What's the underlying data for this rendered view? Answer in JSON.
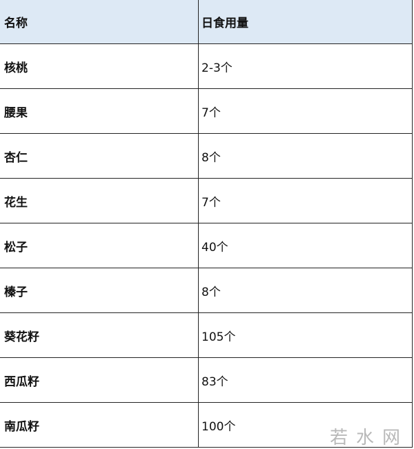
{
  "table": {
    "headers": [
      "名称",
      "日食用量"
    ],
    "rows": [
      [
        "核桃",
        "2-3个"
      ],
      [
        "腰果",
        "7个"
      ],
      [
        "杏仁",
        "8个"
      ],
      [
        "花生",
        "7个"
      ],
      [
        "松子",
        "40个"
      ],
      [
        "榛子",
        "8个"
      ],
      [
        "葵花籽",
        "105个"
      ],
      [
        "西瓜籽",
        "83个"
      ],
      [
        "南瓜籽",
        "100个"
      ]
    ]
  },
  "colors": {
    "header_bg": "#dde9f5",
    "border": "#222222"
  },
  "watermark": "若水网"
}
